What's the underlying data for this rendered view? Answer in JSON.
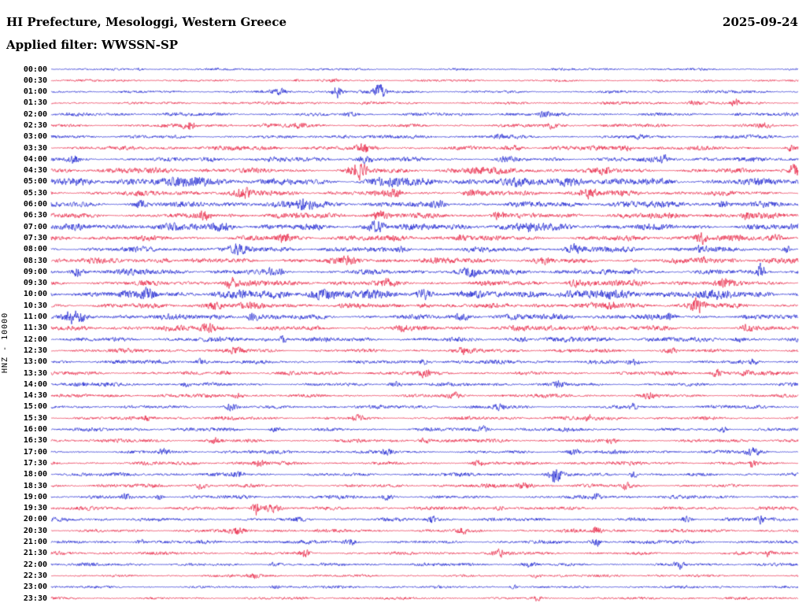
{
  "chart_data": {
    "type": "line",
    "subtype": "helicorder-seismogram",
    "title": "HI Prefecture, Mesologgi, Western Greece",
    "date": "2025-09-24",
    "filter_line": "Applied filter: WWSSN-SP",
    "ylabel": "HNZ - 10000",
    "station_channel": "HNZ",
    "scale_value": "10000",
    "row_interval_minutes": 30,
    "rows_count": 48,
    "legend_position": "none",
    "grid": false,
    "colors": {
      "blue": "#2128d2",
      "red": "#e82848"
    },
    "rows": [
      {
        "t": "00:00",
        "c": "blue",
        "b": 0.7,
        "e": [
          [
            0.12,
            2,
            0.004
          ]
        ]
      },
      {
        "t": "00:30",
        "c": "red",
        "b": 0.7,
        "e": [
          [
            0.33,
            1.5,
            0.006
          ],
          [
            0.38,
            1.5,
            0.005
          ]
        ]
      },
      {
        "t": "01:00",
        "c": "blue",
        "b": 0.9,
        "e": [
          [
            0.305,
            2,
            0.01
          ],
          [
            0.383,
            5.5,
            0.007
          ],
          [
            0.44,
            6.5,
            0.007
          ]
        ]
      },
      {
        "t": "01:30",
        "c": "red",
        "b": 0.9,
        "e": [
          [
            0.86,
            1.8,
            0.01
          ],
          [
            0.915,
            3.5,
            0.006
          ]
        ]
      },
      {
        "t": "02:00",
        "c": "blue",
        "b": 1.1,
        "e": [
          [
            0.4,
            2,
            0.01
          ],
          [
            0.66,
            1.8,
            0.008
          ],
          [
            0.92,
            1.5,
            0.008
          ]
        ]
      },
      {
        "t": "02:30",
        "c": "red",
        "b": 1.1,
        "e": [
          [
            0.185,
            3.5,
            0.008
          ],
          [
            0.33,
            1.8,
            0.01
          ],
          [
            0.67,
            2.2,
            0.006
          ],
          [
            0.955,
            1.8,
            0.008
          ]
        ]
      },
      {
        "t": "03:00",
        "c": "blue",
        "b": 1.1,
        "e": [
          [
            0.39,
            1.8,
            0.01
          ],
          [
            0.6,
            1.8,
            0.01
          ],
          [
            0.79,
            1.8,
            0.008
          ]
        ]
      },
      {
        "t": "03:30",
        "c": "red",
        "b": 1.4,
        "e": [
          [
            0.42,
            2.5,
            0.012
          ],
          [
            0.62,
            1.8,
            0.01
          ],
          [
            0.77,
            2.2,
            0.008
          ],
          [
            0.99,
            2.5,
            0.005
          ]
        ]
      },
      {
        "t": "04:00",
        "c": "blue",
        "b": 1.4,
        "e": [
          [
            0.03,
            3.5,
            0.006
          ],
          [
            0.21,
            2.2,
            0.008
          ],
          [
            0.42,
            2.2,
            0.01
          ],
          [
            0.61,
            1.8,
            0.01
          ],
          [
            0.82,
            2.5,
            0.008
          ]
        ]
      },
      {
        "t": "04:30",
        "c": "red",
        "b": 1.7,
        "e": [
          [
            0.41,
            6,
            0.012
          ],
          [
            0.57,
            2.5,
            0.01
          ],
          [
            0.74,
            2.5,
            0.008
          ],
          [
            0.995,
            7,
            0.006
          ]
        ]
      },
      {
        "t": "05:00",
        "c": "blue",
        "b": 2.4,
        "e": [
          [
            0.2,
            2.5,
            0.02
          ],
          [
            0.45,
            2.5,
            0.02
          ],
          [
            0.7,
            2.5,
            0.02
          ]
        ]
      },
      {
        "t": "05:30",
        "c": "red",
        "b": 1.7,
        "e": [
          [
            0.26,
            2.5,
            0.01
          ],
          [
            0.46,
            2.5,
            0.01
          ],
          [
            0.56,
            2.5,
            0.008
          ],
          [
            0.72,
            3.5,
            0.008
          ]
        ]
      },
      {
        "t": "06:00",
        "c": "blue",
        "b": 1.9,
        "e": [
          [
            0.12,
            2.5,
            0.008
          ],
          [
            0.34,
            5,
            0.01
          ],
          [
            0.52,
            2.5,
            0.008
          ],
          [
            0.9,
            2.5,
            0.006
          ]
        ]
      },
      {
        "t": "06:30",
        "c": "red",
        "b": 1.7,
        "e": [
          [
            0.205,
            4.5,
            0.008
          ],
          [
            0.44,
            3.5,
            0.01
          ],
          [
            0.6,
            3.5,
            0.01
          ],
          [
            0.93,
            2.5,
            0.008
          ]
        ]
      },
      {
        "t": "07:00",
        "c": "blue",
        "b": 2.1,
        "e": [
          [
            0.23,
            2.5,
            0.01
          ],
          [
            0.435,
            6,
            0.012
          ],
          [
            0.64,
            2.5,
            0.01
          ]
        ]
      },
      {
        "t": "07:30",
        "c": "red",
        "b": 1.7,
        "e": [
          [
            0.31,
            2.5,
            0.01
          ],
          [
            0.55,
            2.5,
            0.01
          ],
          [
            0.87,
            5,
            0.008
          ],
          [
            0.97,
            2.5,
            0.006
          ]
        ]
      },
      {
        "t": "08:00",
        "c": "blue",
        "b": 1.7,
        "e": [
          [
            0.25,
            2.5,
            0.01
          ],
          [
            0.47,
            2.5,
            0.01
          ],
          [
            0.7,
            2.5,
            0.008
          ],
          [
            0.87,
            3.5,
            0.008
          ],
          [
            0.985,
            4,
            0.005
          ]
        ]
      },
      {
        "t": "08:30",
        "c": "red",
        "b": 1.7,
        "e": [
          [
            0.15,
            2.5,
            0.01
          ],
          [
            0.4,
            2.5,
            0.01
          ],
          [
            0.66,
            2.5,
            0.01
          ],
          [
            0.87,
            2.5,
            0.008
          ]
        ]
      },
      {
        "t": "09:00",
        "c": "blue",
        "b": 1.7,
        "e": [
          [
            0.035,
            4.5,
            0.006
          ],
          [
            0.3,
            2.5,
            0.01
          ],
          [
            0.56,
            2.5,
            0.01
          ],
          [
            0.78,
            2.5,
            0.008
          ],
          [
            0.95,
            8.5,
            0.0045
          ]
        ]
      },
      {
        "t": "09:30",
        "c": "red",
        "b": 1.7,
        "e": [
          [
            0.24,
            3.5,
            0.008
          ],
          [
            0.45,
            2.5,
            0.01
          ],
          [
            0.7,
            2.5,
            0.01
          ],
          [
            0.9,
            2.5,
            0.01
          ]
        ]
      },
      {
        "t": "10:00",
        "c": "blue",
        "b": 2.7,
        "e": [
          [
            0.13,
            3.5,
            0.01
          ],
          [
            0.36,
            2.5,
            0.015
          ],
          [
            0.5,
            3.5,
            0.01
          ],
          [
            0.65,
            2.5,
            0.015
          ]
        ]
      },
      {
        "t": "10:30",
        "c": "red",
        "b": 1.7,
        "e": [
          [
            0.22,
            2.5,
            0.01
          ],
          [
            0.5,
            2.5,
            0.01
          ],
          [
            0.75,
            2.5,
            0.008
          ],
          [
            0.865,
            6,
            0.009
          ]
        ]
      },
      {
        "t": "11:00",
        "c": "blue",
        "b": 1.7,
        "e": [
          [
            0.032,
            5,
            0.012
          ],
          [
            0.27,
            3.5,
            0.008
          ],
          [
            0.55,
            2.5,
            0.01
          ],
          [
            0.83,
            2.5,
            0.008
          ]
        ]
      },
      {
        "t": "11:30",
        "c": "red",
        "b": 1.5,
        "e": [
          [
            0.21,
            3.5,
            0.01
          ],
          [
            0.47,
            2.5,
            0.01
          ],
          [
            0.72,
            2.5,
            0.01
          ],
          [
            0.93,
            2.5,
            0.008
          ]
        ]
      },
      {
        "t": "12:00",
        "c": "blue",
        "b": 1.5,
        "e": [
          [
            0.31,
            2.5,
            0.008
          ],
          [
            0.63,
            2.5,
            0.008
          ],
          [
            0.92,
            2.2,
            0.008
          ]
        ]
      },
      {
        "t": "12:30",
        "c": "red",
        "b": 1.2,
        "e": [
          [
            0.25,
            2.2,
            0.01
          ],
          [
            0.55,
            2.2,
            0.01
          ],
          [
            0.83,
            2.2,
            0.01
          ]
        ]
      },
      {
        "t": "13:00",
        "c": "blue",
        "b": 1.2,
        "e": [
          [
            0.2,
            2.2,
            0.008
          ],
          [
            0.5,
            2.5,
            0.008
          ],
          [
            0.78,
            2.2,
            0.008
          ],
          [
            0.94,
            2.2,
            0.006
          ]
        ]
      },
      {
        "t": "13:30",
        "c": "red",
        "b": 1.2,
        "e": [
          [
            0.23,
            2.2,
            0.01
          ],
          [
            0.5,
            2.2,
            0.008
          ],
          [
            0.89,
            3,
            0.006
          ],
          [
            0.93,
            2.2,
            0.006
          ]
        ]
      },
      {
        "t": "14:00",
        "c": "blue",
        "b": 1.1,
        "e": [
          [
            0.04,
            2.2,
            0.006
          ],
          [
            0.18,
            2.2,
            0.006
          ],
          [
            0.46,
            2.2,
            0.008
          ],
          [
            0.68,
            2.2,
            0.008
          ]
        ]
      },
      {
        "t": "14:30",
        "c": "red",
        "b": 1.1,
        "e": [
          [
            0.25,
            2.2,
            0.01
          ],
          [
            0.54,
            2.2,
            0.008
          ],
          [
            0.8,
            2.2,
            0.008
          ]
        ]
      },
      {
        "t": "15:00",
        "c": "blue",
        "b": 1.1,
        "e": [
          [
            0.24,
            2.8,
            0.008
          ],
          [
            0.6,
            2.2,
            0.008
          ],
          [
            0.78,
            2.2,
            0.006
          ]
        ]
      },
      {
        "t": "15:30",
        "c": "red",
        "b": 1.1,
        "e": [
          [
            0.13,
            2.2,
            0.008
          ],
          [
            0.41,
            2.2,
            0.008
          ],
          [
            0.72,
            2.2,
            0.008
          ]
        ]
      },
      {
        "t": "16:00",
        "c": "blue",
        "b": 1.1,
        "e": [
          [
            0.3,
            2.2,
            0.008
          ],
          [
            0.58,
            2.2,
            0.008
          ],
          [
            0.9,
            3,
            0.006
          ]
        ]
      },
      {
        "t": "16:30",
        "c": "red",
        "b": 1.1,
        "e": [
          [
            0.22,
            2.2,
            0.008
          ],
          [
            0.5,
            2.2,
            0.008
          ],
          [
            0.75,
            2.2,
            0.008
          ]
        ]
      },
      {
        "t": "17:00",
        "c": "blue",
        "b": 1.1,
        "e": [
          [
            0.15,
            2.2,
            0.008
          ],
          [
            0.45,
            2.2,
            0.008
          ],
          [
            0.7,
            2.2,
            0.008
          ],
          [
            0.94,
            2.8,
            0.01
          ]
        ]
      },
      {
        "t": "17:30",
        "c": "red",
        "b": 1.1,
        "e": [
          [
            0.28,
            2.2,
            0.008
          ],
          [
            0.57,
            2.2,
            0.008
          ],
          [
            0.94,
            4.5,
            0.005
          ]
        ]
      },
      {
        "t": "18:00",
        "c": "blue",
        "b": 1.1,
        "e": [
          [
            0.25,
            2.2,
            0.008
          ],
          [
            0.675,
            6,
            0.008
          ],
          [
            0.78,
            2.8,
            0.006
          ]
        ]
      },
      {
        "t": "18:30",
        "c": "red",
        "b": 1.1,
        "e": [
          [
            0.2,
            2.2,
            0.008
          ],
          [
            0.63,
            2.8,
            0.01
          ],
          [
            0.77,
            3.2,
            0.006
          ]
        ]
      },
      {
        "t": "19:00",
        "c": "blue",
        "b": 1.1,
        "e": [
          [
            0.1,
            2.8,
            0.006
          ],
          [
            0.145,
            2.2,
            0.006
          ],
          [
            0.45,
            2.2,
            0.008
          ],
          [
            0.73,
            2.2,
            0.008
          ]
        ]
      },
      {
        "t": "19:30",
        "c": "red",
        "b": 1.1,
        "e": [
          [
            0.275,
            6.5,
            0.006
          ],
          [
            0.295,
            3.5,
            0.012
          ],
          [
            0.6,
            2.2,
            0.008
          ]
        ]
      },
      {
        "t": "20:00",
        "c": "blue",
        "b": 1.1,
        "e": [
          [
            0.33,
            2.2,
            0.008
          ],
          [
            0.51,
            2.8,
            0.006
          ],
          [
            0.85,
            2.2,
            0.008
          ],
          [
            0.95,
            2.8,
            0.006
          ]
        ]
      },
      {
        "t": "20:30",
        "c": "red",
        "b": 1.1,
        "e": [
          [
            0.25,
            2.2,
            0.008
          ],
          [
            0.55,
            2.2,
            0.008
          ],
          [
            0.73,
            3.2,
            0.006
          ]
        ]
      },
      {
        "t": "21:00",
        "c": "blue",
        "b": 1.1,
        "e": [
          [
            0.12,
            2.2,
            0.008
          ],
          [
            0.4,
            2.2,
            0.008
          ],
          [
            0.73,
            4,
            0.005
          ]
        ]
      },
      {
        "t": "21:30",
        "c": "red",
        "b": 1.0,
        "e": [
          [
            0.34,
            2.8,
            0.006
          ],
          [
            0.6,
            2.2,
            0.008
          ],
          [
            0.96,
            2.2,
            0.006
          ]
        ]
      },
      {
        "t": "22:00",
        "c": "blue",
        "b": 1.0,
        "e": [
          [
            0.3,
            2.2,
            0.008
          ],
          [
            0.64,
            2.2,
            0.008
          ],
          [
            0.84,
            3.2,
            0.006
          ]
        ]
      },
      {
        "t": "22:30",
        "c": "red",
        "b": 0.8,
        "e": [
          [
            0.27,
            1.8,
            0.008
          ],
          [
            0.65,
            1.8,
            0.008
          ]
        ]
      },
      {
        "t": "23:00",
        "c": "blue",
        "b": 0.8,
        "e": [
          [
            0.3,
            1.8,
            0.008
          ],
          [
            0.62,
            1.8,
            0.006
          ]
        ]
      },
      {
        "t": "23:30",
        "c": "red",
        "b": 0.8,
        "e": [
          [
            0.65,
            2.2,
            0.006
          ]
        ]
      }
    ]
  }
}
